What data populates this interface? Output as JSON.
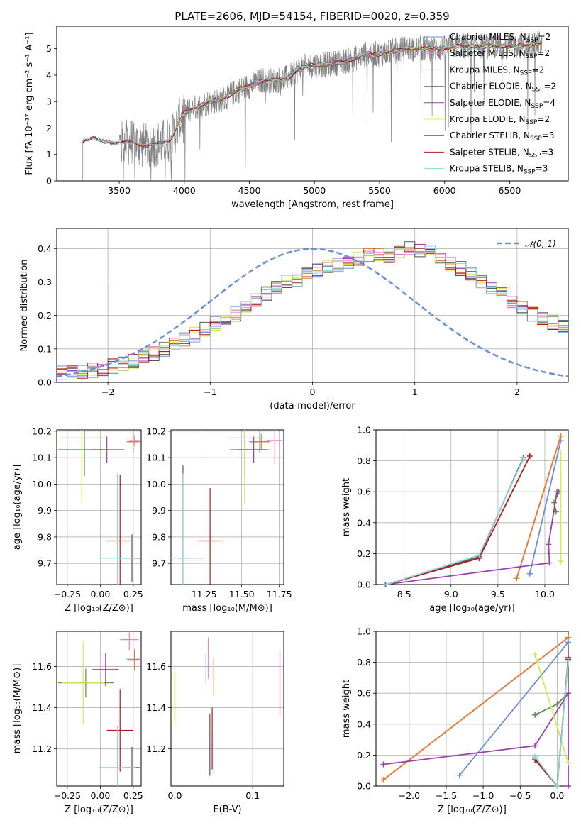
{
  "title": "PLATE=2606, MJD=54154, FIBERID=0020, z=0.359",
  "colors": {
    "Chabrier MILES": "#6a8fd8",
    "Salpeter MILES": "#ee82c0",
    "Kroupa MILES": "#e37b2d",
    "Chabrier ELODIE": "#5a8a5a",
    "Salpeter ELODIE": "#9b3fae",
    "Kroupa ELODIE": "#d6e85a",
    "Chabrier STELIB": "#555555",
    "Salpeter STELIB": "#b31b1b",
    "Kroupa STELIB": "#8fd6d8",
    "data": "#808080",
    "normal": "#6a8fd8"
  },
  "panels": {
    "spectrum": {
      "xlabel": "wavelength [Angstrom, rest frame]",
      "ylabel": "Flux [fλ 10⁻¹⁷ erg cm⁻² s⁻¹ A⁻¹]",
      "xticks": [
        "3500",
        "4000",
        "4500",
        "5000",
        "5500",
        "6000",
        "6500"
      ],
      "yticks": [
        "0",
        "1",
        "2",
        "3",
        "4",
        "5"
      ]
    },
    "residuals": {
      "xlabel": "(data-model)/error",
      "ylabel": "Normed distribution",
      "xticks": [
        "−2",
        "−1",
        "0",
        "1",
        "2"
      ],
      "yticks": [
        "0.0",
        "0.1",
        "0.2",
        "0.3",
        "0.4"
      ],
      "legend": "𝒩(0, 1)"
    },
    "age_z": {
      "xlabel": "Z [log₁₀(Z/Z⊙)]",
      "ylabel": "age  [log₁₀(age/yr)]",
      "xticks": [
        "−0.25",
        "0.00",
        "0.25"
      ],
      "yticks": [
        "9.7",
        "9.8",
        "9.9",
        "10.0",
        "10.1",
        "10.2"
      ]
    },
    "age_mass": {
      "xlabel": "mass [log₁₀(M/M⊙)]",
      "xticks": [
        "11.25",
        "11.50",
        "11.75"
      ],
      "yticks": [
        "9.7",
        "9.8",
        "9.9",
        "10.0",
        "10.1",
        "10.2"
      ]
    },
    "weight_age": {
      "xlabel": "age  [log₁₀(age/yr)]",
      "ylabel": "mass weight",
      "xticks": [
        "8.5",
        "9.0",
        "9.5",
        "10.0"
      ],
      "yticks": [
        "0.0",
        "0.2",
        "0.4",
        "0.6",
        "0.8",
        "1.0"
      ]
    },
    "mass_z": {
      "xlabel": "Z [log₁₀(Z/Z⊙)]",
      "ylabel": "mass [log₁₀(M/M⊙)]",
      "xticks": [
        "−0.25",
        "0.00",
        "0.25"
      ],
      "yticks": [
        "11.2",
        "11.4",
        "11.6"
      ]
    },
    "mass_ebv": {
      "xlabel": "E(B-V)",
      "xticks": [
        "0.0",
        "0.1"
      ],
      "yticks": [
        "11.2",
        "11.4",
        "11.6"
      ]
    },
    "weight_z": {
      "xlabel": "Z [log₁₀(Z/Z⊙)]",
      "ylabel": "mass weight",
      "xticks": [
        "−2.0",
        "−1.5",
        "−1.0",
        "−0.5",
        "0.0"
      ],
      "yticks": [
        "0.0",
        "0.2",
        "0.4",
        "0.6",
        "0.8",
        "1.0"
      ]
    }
  },
  "chart_data": [
    {
      "type": "line",
      "title": "PLATE=2606, MJD=54154, FIBERID=0020, z=0.359",
      "xlabel": "wavelength [Angstrom, rest frame]",
      "xlim": [
        3020,
        6950
      ],
      "ylim": [
        0,
        5.85
      ],
      "legend": [
        {
          "name": "Chabrier MILES",
          "nssp": "2"
        },
        {
          "name": "Salpeter MILES",
          "nssp": "2"
        },
        {
          "name": "Kroupa MILES",
          "nssp": "2"
        },
        {
          "name": "Chabrier ELODIE",
          "nssp": "2"
        },
        {
          "name": "Salpeter ELODIE",
          "nssp": "4"
        },
        {
          "name": "Kroupa ELODIE",
          "nssp": "2"
        },
        {
          "name": "Chabrier STELIB",
          "nssp": "3"
        },
        {
          "name": "Salpeter STELIB",
          "nssp": "3"
        },
        {
          "name": "Kroupa STELIB",
          "nssp": "3"
        }
      ],
      "continuum": [
        [
          3220,
          1.5
        ],
        [
          3300,
          1.6
        ],
        [
          3400,
          1.5
        ],
        [
          3500,
          1.4
        ],
        [
          3600,
          1.5
        ],
        [
          3700,
          1.3
        ],
        [
          3800,
          1.4
        ],
        [
          3900,
          1.6
        ],
        [
          4000,
          2.6
        ],
        [
          4100,
          2.8
        ],
        [
          4200,
          3.0
        ],
        [
          4300,
          3.1
        ],
        [
          4400,
          3.4
        ],
        [
          4500,
          3.6
        ],
        [
          4600,
          3.8
        ],
        [
          4700,
          3.8
        ],
        [
          4800,
          3.9
        ],
        [
          4900,
          4.3
        ],
        [
          5000,
          4.4
        ],
        [
          5100,
          4.4
        ],
        [
          5200,
          4.5
        ],
        [
          5300,
          4.6
        ],
        [
          5400,
          4.8
        ],
        [
          5500,
          4.8
        ],
        [
          5600,
          4.9
        ],
        [
          5700,
          5.0
        ],
        [
          5800,
          5.0
        ],
        [
          5900,
          5.0
        ],
        [
          6000,
          5.0
        ],
        [
          6100,
          5.1
        ],
        [
          6200,
          5.1
        ],
        [
          6300,
          5.1
        ],
        [
          6400,
          5.1
        ],
        [
          6500,
          5.1
        ],
        [
          6600,
          5.1
        ],
        [
          6700,
          5.2
        ],
        [
          6750,
          5.2
        ]
      ]
    },
    {
      "type": "bar",
      "title": "",
      "xlabel": "(data-model)/error",
      "ylabel": "Normed distribution",
      "xlim": [
        -2.5,
        2.5
      ],
      "ylim": [
        0,
        0.46
      ],
      "bin_width": 0.1,
      "histogram": [
        0.028,
        0.03,
        0.033,
        0.037,
        0.042,
        0.048,
        0.055,
        0.063,
        0.073,
        0.085,
        0.098,
        0.112,
        0.128,
        0.143,
        0.158,
        0.175,
        0.195,
        0.205,
        0.225,
        0.245,
        0.265,
        0.285,
        0.3,
        0.3,
        0.32,
        0.335,
        0.345,
        0.35,
        0.355,
        0.37,
        0.38,
        0.385,
        0.38,
        0.395,
        0.4,
        0.395,
        0.385,
        0.37,
        0.355,
        0.34,
        0.32,
        0.3,
        0.285,
        0.265,
        0.245,
        0.225,
        0.205,
        0.19,
        0.18,
        0.17,
        0.16,
        0.15,
        0.14,
        0.13,
        0.12,
        0.11,
        0.1,
        0.09,
        0.08,
        0.072,
        0.064,
        0.058,
        0.052,
        0.048,
        0.044,
        0.04,
        0.036,
        0.033,
        0.03,
        0.028
      ]
    },
    {
      "type": "scatter",
      "xlabel": "Z [log10(Z/Z_sun)]",
      "ylabel": "age [log10(age/yr)]",
      "xlim": [
        -0.33,
        0.31
      ],
      "ylim": [
        9.62,
        10.205
      ],
      "points": [
        {
          "series": "Chabrier MILES",
          "x": 0.25,
          "y": 10.16,
          "xerr": 0.05,
          "yerr": 0.04
        },
        {
          "series": "Salpeter MILES",
          "x": 0.26,
          "y": 10.165,
          "xerr": 0.04,
          "yerr": 0.02
        },
        {
          "series": "Kroupa MILES",
          "x": 0.25,
          "y": 10.16,
          "xerr": 0.04,
          "yerr": 0.03
        },
        {
          "series": "Chabrier ELODIE",
          "x": -0.12,
          "y": 10.13,
          "xerr": 0.2,
          "yerr": 0.1
        },
        {
          "series": "Salpeter ELODIE",
          "x": 0.05,
          "y": 10.13,
          "xerr": 0.13,
          "yerr": 0.05
        },
        {
          "series": "Kroupa ELODIE",
          "x": -0.14,
          "y": 10.175,
          "xerr": 0.16,
          "yerr": 0.25
        },
        {
          "series": "Chabrier STELIB",
          "x": 0.24,
          "y": 9.72,
          "xerr": 0.06,
          "yerr": 0.09
        },
        {
          "series": "Salpeter STELIB",
          "x": 0.15,
          "y": 9.785,
          "xerr": 0.1,
          "yerr": 0.25
        },
        {
          "series": "Kroupa STELIB",
          "x": 0.13,
          "y": 9.72,
          "xerr": 0.13,
          "yerr": 0.32
        }
      ]
    },
    {
      "type": "scatter",
      "xlabel": "mass [log10(M/M_sun)]",
      "ylabel": "age [log10(age/yr)]",
      "xlim": [
        11.03,
        11.78
      ],
      "ylim": [
        9.62,
        10.205
      ],
      "points": [
        {
          "series": "Chabrier MILES",
          "x": 11.62,
          "y": 10.16,
          "xerr": 0.07,
          "yerr": 0.04
        },
        {
          "series": "Salpeter MILES",
          "x": 11.72,
          "y": 10.165,
          "xerr": 0.05,
          "yerr": 0.09
        },
        {
          "series": "Kroupa MILES",
          "x": 11.63,
          "y": 10.16,
          "xerr": 0.06,
          "yerr": 0.03
        },
        {
          "series": "Chabrier ELODIE",
          "x": 11.52,
          "y": 10.13,
          "xerr": 0.1,
          "yerr": 0.1
        },
        {
          "series": "Salpeter ELODIE",
          "x": 11.58,
          "y": 10.13,
          "xerr": 0.1,
          "yerr": 0.05
        },
        {
          "series": "Kroupa ELODIE",
          "x": 11.52,
          "y": 10.175,
          "xerr": 0.1,
          "yerr": 0.25
        },
        {
          "series": "Chabrier STELIB",
          "x": 11.11,
          "y": 9.72,
          "xerr": 0.03,
          "yerr": 0.35
        },
        {
          "series": "Salpeter STELIB",
          "x": 11.29,
          "y": 9.785,
          "xerr": 0.08,
          "yerr": 0.2
        },
        {
          "series": "Kroupa STELIB",
          "x": 11.11,
          "y": 9.72,
          "xerr": 0.14,
          "yerr": 0.32
        }
      ]
    },
    {
      "type": "line",
      "xlabel": "age [log10(age/yr)]",
      "ylabel": "mass weight",
      "xlim": [
        8.2,
        10.25
      ],
      "ylim": [
        0,
        1.0
      ],
      "series": [
        {
          "name": "Chabrier MILES",
          "points": [
            [
              9.84,
              0.07
            ],
            [
              10.17,
              0.93
            ]
          ]
        },
        {
          "name": "Salpeter MILES",
          "points": [
            [
              9.7,
              0.04
            ],
            [
              10.17,
              0.96
            ]
          ]
        },
        {
          "name": "Kroupa MILES",
          "points": [
            [
              9.7,
              0.04
            ],
            [
              10.17,
              0.96
            ]
          ]
        },
        {
          "name": "Chabrier ELODIE",
          "points": [
            [
              10.12,
              0.47
            ],
            [
              10.1,
              0.53
            ],
            [
              10.15,
              0.6
            ]
          ]
        },
        {
          "name": "Salpeter ELODIE",
          "points": [
            [
              8.3,
              0.0
            ],
            [
              10.05,
              0.14
            ],
            [
              10.04,
              0.26
            ],
            [
              10.13,
              0.6
            ]
          ]
        },
        {
          "name": "Kroupa ELODIE",
          "points": [
            [
              10.17,
              0.15
            ],
            [
              10.17,
              0.85
            ]
          ]
        },
        {
          "name": "Chabrier STELIB",
          "points": [
            [
              8.31,
              0.0
            ],
            [
              9.3,
              0.18
            ],
            [
              9.77,
              0.82
            ]
          ]
        },
        {
          "name": "Salpeter STELIB",
          "points": [
            [
              8.31,
              0.0
            ],
            [
              9.3,
              0.17
            ],
            [
              9.84,
              0.83
            ]
          ]
        },
        {
          "name": "Kroupa STELIB",
          "points": [
            [
              8.31,
              0.0
            ],
            [
              9.3,
              0.19
            ],
            [
              9.77,
              0.81
            ]
          ]
        }
      ]
    },
    {
      "type": "scatter",
      "xlabel": "Z [log10(Z/Z_sun)]",
      "ylabel": "mass [log10(M/M_sun)]",
      "xlim": [
        -0.33,
        0.31
      ],
      "ylim": [
        11.02,
        11.77
      ],
      "points": [
        {
          "series": "Chabrier MILES",
          "x": 0.26,
          "y": 11.635,
          "xerr": 0.06,
          "yerr": 0.05
        },
        {
          "series": "Salpeter MILES",
          "x": 0.22,
          "y": 11.73,
          "xerr": 0.07,
          "yerr": 0.05
        },
        {
          "series": "Kroupa MILES",
          "x": 0.26,
          "y": 11.63,
          "xerr": 0.05,
          "yerr": 0.05
        },
        {
          "series": "Chabrier ELODIE",
          "x": -0.11,
          "y": 11.52,
          "xerr": 0.21,
          "yerr": 0.07
        },
        {
          "series": "Salpeter ELODIE",
          "x": 0.04,
          "y": 11.585,
          "xerr": 0.1,
          "yerr": 0.08
        },
        {
          "series": "Kroupa ELODIE",
          "x": -0.13,
          "y": 11.52,
          "xerr": 0.16,
          "yerr": 0.2
        },
        {
          "series": "Chabrier STELIB",
          "x": 0.24,
          "y": 11.11,
          "xerr": 0.06,
          "yerr": 0.1
        },
        {
          "series": "Salpeter STELIB",
          "x": 0.15,
          "y": 11.29,
          "xerr": 0.1,
          "yerr": 0.2
        },
        {
          "series": "Kroupa STELIB",
          "x": 0.13,
          "y": 11.11,
          "xerr": 0.14,
          "yerr": 0.2
        }
      ]
    },
    {
      "type": "scatter",
      "xlabel": "E(B-V)",
      "xlim": [
        -0.005,
        0.14
      ],
      "ylim": [
        11.02,
        11.77
      ],
      "points": [
        {
          "series": "Chabrier MILES",
          "x": 0.04,
          "y": 11.59,
          "yerr": 0.07
        },
        {
          "series": "Salpeter MILES",
          "x": 0.043,
          "y": 11.64,
          "yerr": 0.1
        },
        {
          "series": "Kroupa MILES",
          "x": 0.05,
          "y": 11.55,
          "yerr": 0.09
        },
        {
          "series": "Chabrier ELODIE",
          "x": 0.0,
          "y": 11.46,
          "yerr": 0.13
        },
        {
          "series": "Salpeter ELODIE",
          "x": 0.135,
          "y": 11.52,
          "yerr": 0.16
        },
        {
          "series": "Kroupa ELODIE",
          "x": 0.0,
          "y": 11.44,
          "yerr": 0.14
        },
        {
          "series": "Chabrier STELIB",
          "x": 0.045,
          "y": 11.22,
          "yerr": 0.15
        },
        {
          "series": "Salpeter STELIB",
          "x": 0.048,
          "y": 11.25,
          "yerr": 0.15
        },
        {
          "series": "Kroupa STELIB",
          "x": 0.05,
          "y": 11.18,
          "yerr": 0.1
        }
      ]
    },
    {
      "type": "line",
      "xlabel": "Z [log10(Z/Z_sun)]",
      "ylabel": "mass weight",
      "xlim": [
        -2.45,
        0.15
      ],
      "ylim": [
        0,
        1.0
      ],
      "series": [
        {
          "name": "Chabrier MILES",
          "points": [
            [
              -1.32,
              0.07
            ],
            [
              0.15,
              0.93
            ]
          ]
        },
        {
          "name": "Salpeter MILES",
          "points": [
            [
              -2.35,
              0.04
            ],
            [
              0.15,
              0.96
            ]
          ]
        },
        {
          "name": "Kroupa MILES",
          "points": [
            [
              -2.35,
              0.04
            ],
            [
              0.15,
              0.96
            ]
          ]
        },
        {
          "name": "Chabrier ELODIE",
          "points": [
            [
              -0.3,
              0.46
            ],
            [
              0.0,
              0.53
            ],
            [
              0.15,
              0.6
            ]
          ]
        },
        {
          "name": "Salpeter ELODIE",
          "points": [
            [
              -2.35,
              0.14
            ],
            [
              -0.3,
              0.26
            ],
            [
              0.15,
              0.6
            ],
            [
              0.15,
              0.0
            ]
          ]
        },
        {
          "name": "Kroupa ELODIE",
          "points": [
            [
              -0.3,
              0.85
            ],
            [
              0.15,
              0.15
            ]
          ]
        },
        {
          "name": "Chabrier STELIB",
          "points": [
            [
              -0.3,
              0.18
            ],
            [
              0.0,
              0.0
            ],
            [
              0.15,
              0.82
            ]
          ]
        },
        {
          "name": "Salpeter STELIB",
          "points": [
            [
              -0.3,
              0.17
            ],
            [
              0.0,
              0.0
            ],
            [
              0.15,
              0.83
            ]
          ]
        },
        {
          "name": "Kroupa STELIB",
          "points": [
            [
              -0.3,
              0.19
            ],
            [
              0.0,
              0.0
            ],
            [
              0.15,
              0.81
            ]
          ]
        }
      ]
    }
  ]
}
